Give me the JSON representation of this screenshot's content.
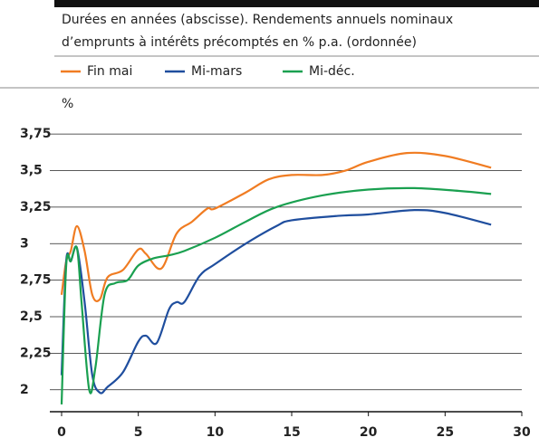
{
  "chart_data": {
    "type": "line",
    "subtitle": [
      "Durées en années (abscisse). Rendements annuels nominaux",
      "d’emprunts à intérêts précomptés en % p.a. (ordonnée)"
    ],
    "y_label": "%",
    "xlim": [
      0,
      30
    ],
    "xticks": [
      0,
      5,
      10,
      15,
      20,
      25,
      30
    ],
    "ylim": [
      1.85,
      3.85
    ],
    "yticks": [
      2,
      {
        "value": 2.25,
        "label": "2,25"
      },
      {
        "value": 2.5,
        "label": "2,5"
      },
      {
        "value": 2.75,
        "label": "2,75"
      },
      3,
      {
        "value": 3.25,
        "label": "3,25"
      },
      {
        "value": 3.5,
        "label": "3,5"
      },
      {
        "value": 3.75,
        "label": "3,75"
      }
    ],
    "grid": true,
    "series": [
      {
        "name": "Fin mai",
        "color": "#f07c22",
        "x": [
          0,
          0.3,
          0.6,
          1,
          1.5,
          2,
          2.5,
          3,
          4,
          5,
          5.5,
          6.5,
          7.5,
          8.5,
          9.5,
          10,
          12,
          13.5,
          15,
          17,
          18.5,
          20,
          22.5,
          25,
          28
        ],
        "values": [
          2.65,
          2.88,
          2.95,
          3.12,
          2.95,
          2.65,
          2.62,
          2.77,
          2.82,
          2.96,
          2.93,
          2.83,
          3.07,
          3.15,
          3.24,
          3.24,
          3.35,
          3.44,
          3.47,
          3.47,
          3.5,
          3.56,
          3.62,
          3.6,
          3.52
        ]
      },
      {
        "name": "Mi-mars",
        "color": "#1f4e9e",
        "x": [
          0,
          0.3,
          0.6,
          1,
          1.5,
          2,
          2.5,
          3,
          4,
          5,
          5.5,
          6.2,
          7,
          7.5,
          8,
          9,
          10,
          12,
          14,
          15,
          18,
          20,
          23,
          25,
          28
        ],
        "values": [
          2.1,
          2.88,
          2.88,
          2.97,
          2.6,
          2.1,
          1.98,
          2.02,
          2.12,
          2.33,
          2.37,
          2.32,
          2.55,
          2.6,
          2.6,
          2.78,
          2.86,
          3.0,
          3.12,
          3.16,
          3.19,
          3.2,
          3.23,
          3.21,
          3.13
        ]
      },
      {
        "name": "Mi-déc.",
        "color": "#1aa050",
        "x": [
          0,
          0.3,
          0.6,
          1,
          1.3,
          1.8,
          2.2,
          2.8,
          3.5,
          4.3,
          5,
          6,
          7,
          8,
          10,
          12,
          14,
          17,
          20,
          23,
          26,
          28
        ],
        "values": [
          1.9,
          2.85,
          2.88,
          2.97,
          2.6,
          2.0,
          2.15,
          2.65,
          2.73,
          2.75,
          2.85,
          2.9,
          2.92,
          2.95,
          3.04,
          3.15,
          3.25,
          3.33,
          3.37,
          3.38,
          3.36,
          3.34
        ]
      }
    ]
  }
}
